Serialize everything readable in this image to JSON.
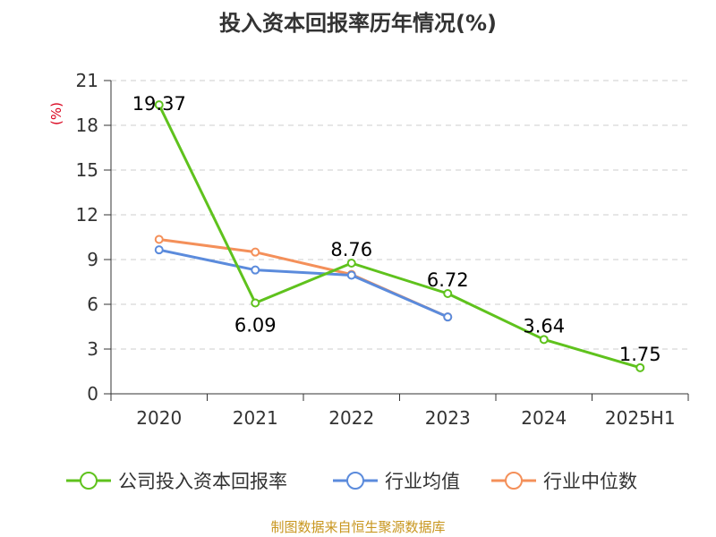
{
  "chart_data": {
    "type": "line",
    "title": "投入资本回报率历年情况(%)",
    "ylabel": "(%)",
    "xlabel": "",
    "categories": [
      "2020",
      "2021",
      "2022",
      "2023",
      "2024",
      "2025H1"
    ],
    "ylim": [
      0,
      21
    ],
    "yticks": [
      "0",
      "3",
      "6",
      "9",
      "12",
      "15",
      "18",
      "21"
    ],
    "grid": true,
    "legend_position": "bottom",
    "series": [
      {
        "name": "公司投入资本回报率",
        "color": "#5fc21d",
        "values": [
          19.37,
          6.09,
          8.76,
          6.72,
          3.64,
          1.75
        ],
        "labels": [
          "19.37",
          "6.09",
          "8.76",
          "6.72",
          "3.64",
          "1.75"
        ]
      },
      {
        "name": "行业均值",
        "color": "#5b8bdc",
        "values": [
          9.65,
          8.3,
          7.95,
          5.15,
          null,
          null
        ]
      },
      {
        "name": "行业中位数",
        "color": "#f4905a",
        "values": [
          10.35,
          9.5,
          8.0,
          5.15,
          null,
          null
        ]
      }
    ]
  },
  "source": "制图数据来自恒生聚源数据库"
}
